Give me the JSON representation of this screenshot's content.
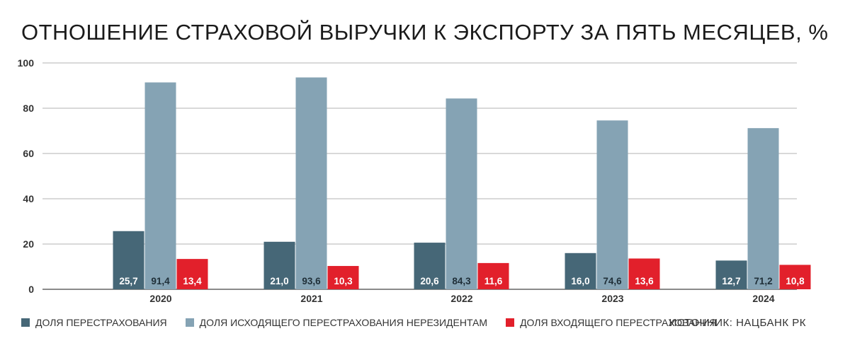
{
  "chart_data": {
    "type": "bar",
    "title": "ОТНОШЕНИЕ СТРАХОВОЙ ВЫРУЧКИ К ЭКСПОРТУ ЗА ПЯТЬ МЕСЯЦЕВ, %",
    "categories": [
      "2020",
      "2021",
      "2022",
      "2023",
      "2024"
    ],
    "series": [
      {
        "name": "ДОЛЯ ПЕРЕСТРАХОВАНИЯ",
        "color": "#466777",
        "values": [
          25.7,
          21.0,
          20.6,
          16.0,
          12.7
        ],
        "labels": [
          "25,7",
          "21,0",
          "20,6",
          "16,0",
          "12,7"
        ]
      },
      {
        "name": "ДОЛЯ ИСХОДЯЩЕГО ПЕРЕСТРАХОВАНИЯ НЕРЕЗИДЕНТАМ",
        "color": "#85a3b4",
        "values": [
          91.4,
          93.6,
          84.3,
          74.6,
          71.2
        ],
        "labels": [
          "91,4",
          "93,6",
          "84,3",
          "74,6",
          "71,2"
        ]
      },
      {
        "name": "ДОЛЯ ВХОДЯЩЕГО ПЕРЕСТРАХОВАНИЯ",
        "color": "#e2202b",
        "values": [
          13.4,
          10.3,
          11.6,
          13.6,
          10.8
        ],
        "labels": [
          "13,4",
          "10,3",
          "11,6",
          "13,6",
          "10,8"
        ]
      }
    ],
    "yticks": [
      0,
      20,
      40,
      60,
      80,
      100
    ],
    "ylim": [
      0,
      100
    ],
    "grid": true,
    "legend_position": "bottom-left",
    "source": "ИСТОЧНИК: НАЦБАНК РК"
  }
}
